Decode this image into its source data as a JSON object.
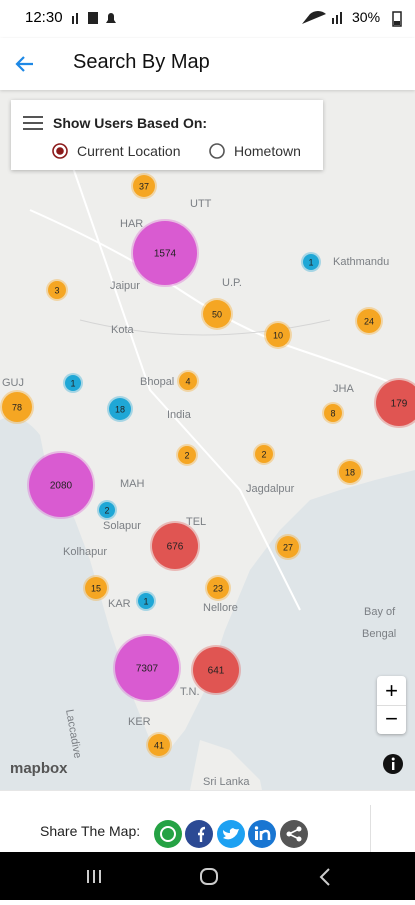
{
  "status_bar": {
    "time": "12:30",
    "battery": "30%"
  },
  "header": {
    "title": "Search By Map"
  },
  "filter": {
    "title": "Show Users Based On:",
    "options": [
      {
        "label": "Current Location",
        "selected": true
      },
      {
        "label": "Hometown",
        "selected": false
      }
    ]
  },
  "map": {
    "labels": [
      "Jaipur",
      "Kota",
      "Bhopal",
      "India",
      "Jagdalpur",
      "Solapur",
      "Kolhapur",
      "Nellore",
      "Kathmandu",
      "Sri Lanka",
      "Bay of",
      "Bengal",
      "U.P.",
      "MAH",
      "TEL",
      "KAR",
      "T.N.",
      "KER",
      "JHA",
      "GUJ",
      "HAR",
      "UTT",
      "Laccadive"
    ],
    "clusters": [
      37,
      1574,
      1,
      3,
      50,
      10,
      24,
      1,
      4,
      78,
      18,
      179,
      8,
      2,
      2,
      18,
      2080,
      2,
      676,
      27,
      15,
      23,
      1,
      7307,
      641,
      41
    ],
    "attribution": "mapbox",
    "zoom_in": "+",
    "zoom_out": "−"
  },
  "share": {
    "label": "Share The Map:"
  }
}
